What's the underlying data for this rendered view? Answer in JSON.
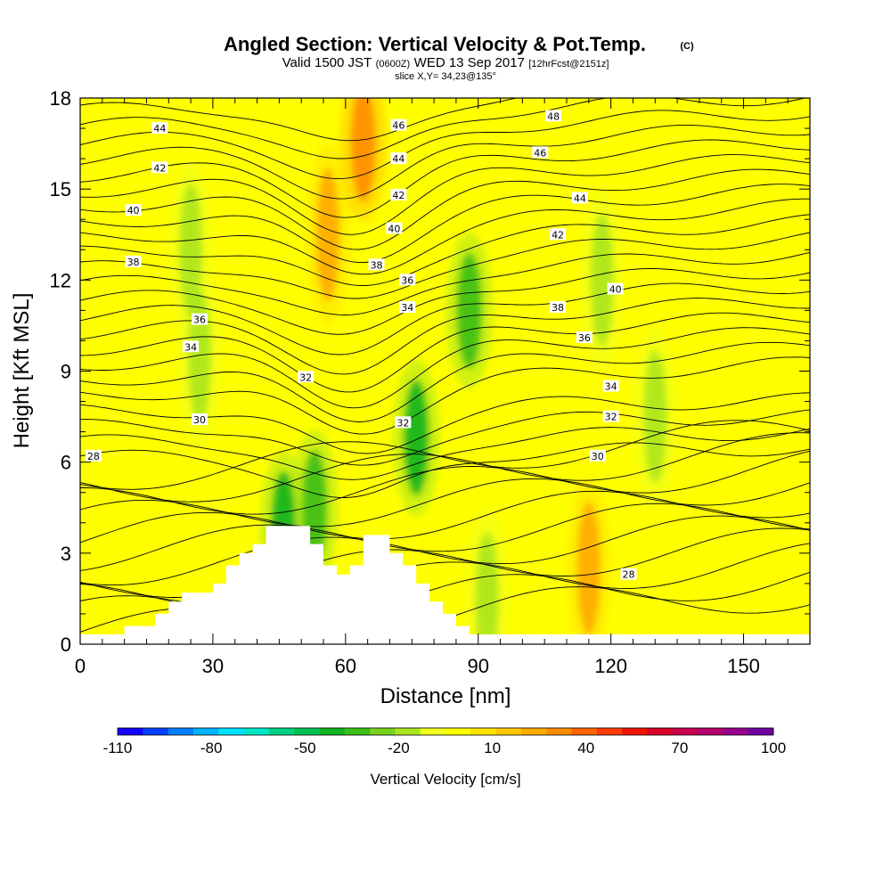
{
  "title": {
    "main": "Angled Section: Vertical Velocity & Pot.Temp.",
    "copyright": "(C)",
    "valid_prefix": "Valid 1500 JST",
    "valid_utc": "(0600Z)",
    "valid_date": "WED 13 Sep 2017",
    "forecast": "[12hrFcst@2151z]",
    "slice": "slice X,Y= 34,23@135°"
  },
  "chart_data": {
    "type": "heatmap",
    "xlabel": "Distance [nm]",
    "ylabel": "Height [Kft MSL]",
    "xlim": [
      0,
      165
    ],
    "ylim": [
      0,
      18
    ],
    "x_ticks": [
      0,
      30,
      60,
      90,
      120,
      150
    ],
    "y_ticks": [
      0,
      3,
      6,
      9,
      12,
      15,
      18
    ],
    "colorbar": {
      "title": "Vertical Velocity [cm/s]",
      "tick_labels": [
        "-110",
        "-80",
        "-50",
        "-20",
        "10",
        "40",
        "70",
        "100"
      ],
      "tick_values": [
        -110,
        -80,
        -50,
        -20,
        10,
        40,
        70,
        100
      ],
      "colors": [
        "#1400ff",
        "#0040ff",
        "#0080ff",
        "#00b4ff",
        "#00e1ff",
        "#00e6c8",
        "#00d282",
        "#00c050",
        "#10b420",
        "#3cbe14",
        "#78d21e",
        "#aae61e",
        "#f0ff1e",
        "#ffff00",
        "#ffe100",
        "#ffc800",
        "#ffaa00",
        "#ff8c00",
        "#ff6400",
        "#ff3c00",
        "#f01400",
        "#dc0028",
        "#c80050",
        "#b4006e",
        "#96008c",
        "#6e00a0"
      ]
    },
    "vertical_velocity_features": [
      {
        "x": 25,
        "y": 13.0,
        "value": -20
      },
      {
        "x": 27,
        "y": 9.5,
        "value": -15
      },
      {
        "x": 46,
        "y": 3.8,
        "value": -40
      },
      {
        "x": 53,
        "y": 4.5,
        "value": -30
      },
      {
        "x": 76,
        "y": 6.8,
        "value": -40
      },
      {
        "x": 88,
        "y": 11.0,
        "value": -30
      },
      {
        "x": 92,
        "y": 1.5,
        "value": -20
      },
      {
        "x": 118,
        "y": 12.0,
        "value": -20
      },
      {
        "x": 130,
        "y": 7.5,
        "value": -20
      },
      {
        "x": 64,
        "y": 16.5,
        "value": 30
      },
      {
        "x": 56,
        "y": 13.5,
        "value": 20
      },
      {
        "x": 115,
        "y": 2.5,
        "value": 20
      }
    ],
    "potential_temperature_labels": [
      {
        "text": "28",
        "x": 3,
        "y": 6.2
      },
      {
        "text": "30",
        "x": 27,
        "y": 7.4
      },
      {
        "text": "32",
        "x": 51,
        "y": 8.8
      },
      {
        "text": "32",
        "x": 73,
        "y": 7.3
      },
      {
        "text": "34",
        "x": 25,
        "y": 9.8
      },
      {
        "text": "36",
        "x": 27,
        "y": 10.7
      },
      {
        "text": "38",
        "x": 12,
        "y": 12.6
      },
      {
        "text": "40",
        "x": 12,
        "y": 14.3
      },
      {
        "text": "42",
        "x": 18,
        "y": 15.7
      },
      {
        "text": "44",
        "x": 18,
        "y": 17.0
      },
      {
        "text": "46",
        "x": 72,
        "y": 17.1
      },
      {
        "text": "44",
        "x": 72,
        "y": 16.0
      },
      {
        "text": "42",
        "x": 72,
        "y": 14.8
      },
      {
        "text": "40",
        "x": 71,
        "y": 13.7
      },
      {
        "text": "38",
        "x": 67,
        "y": 12.5
      },
      {
        "text": "36",
        "x": 74,
        "y": 12.0
      },
      {
        "text": "34",
        "x": 74,
        "y": 11.1
      },
      {
        "text": "48",
        "x": 107,
        "y": 17.4
      },
      {
        "text": "46",
        "x": 104,
        "y": 16.2
      },
      {
        "text": "44",
        "x": 113,
        "y": 14.7
      },
      {
        "text": "42",
        "x": 108,
        "y": 13.5
      },
      {
        "text": "40",
        "x": 121,
        "y": 11.7
      },
      {
        "text": "38",
        "x": 108,
        "y": 11.1
      },
      {
        "text": "36",
        "x": 114,
        "y": 10.1
      },
      {
        "text": "34",
        "x": 120,
        "y": 8.5
      },
      {
        "text": "32",
        "x": 120,
        "y": 7.5
      },
      {
        "text": "30",
        "x": 117,
        "y": 6.2
      },
      {
        "text": "28",
        "x": 124,
        "y": 2.3
      }
    ],
    "terrain": [
      [
        10,
        0.6
      ],
      [
        17,
        0.6
      ],
      [
        17,
        1.0
      ],
      [
        20,
        1.0
      ],
      [
        20,
        1.4
      ],
      [
        23,
        1.4
      ],
      [
        23,
        1.7
      ],
      [
        30,
        1.7
      ],
      [
        30,
        2.0
      ],
      [
        33,
        2.0
      ],
      [
        33,
        2.6
      ],
      [
        36,
        2.6
      ],
      [
        36,
        3.0
      ],
      [
        39,
        3.0
      ],
      [
        39,
        3.3
      ],
      [
        42,
        3.3
      ],
      [
        42,
        3.9
      ],
      [
        52,
        3.9
      ],
      [
        52,
        3.3
      ],
      [
        55,
        3.3
      ],
      [
        55,
        2.6
      ],
      [
        58,
        2.6
      ],
      [
        58,
        2.3
      ],
      [
        61,
        2.3
      ],
      [
        61,
        2.6
      ],
      [
        64,
        2.6
      ],
      [
        64,
        3.6
      ],
      [
        70,
        3.6
      ],
      [
        70,
        3.0
      ],
      [
        73,
        3.0
      ],
      [
        73,
        2.6
      ],
      [
        76,
        2.6
      ],
      [
        76,
        2.0
      ],
      [
        79,
        2.0
      ],
      [
        79,
        1.4
      ],
      [
        82,
        1.4
      ],
      [
        82,
        1.0
      ],
      [
        85,
        1.0
      ],
      [
        85,
        0.6
      ],
      [
        88,
        0.6
      ],
      [
        88,
        0.3
      ]
    ]
  }
}
